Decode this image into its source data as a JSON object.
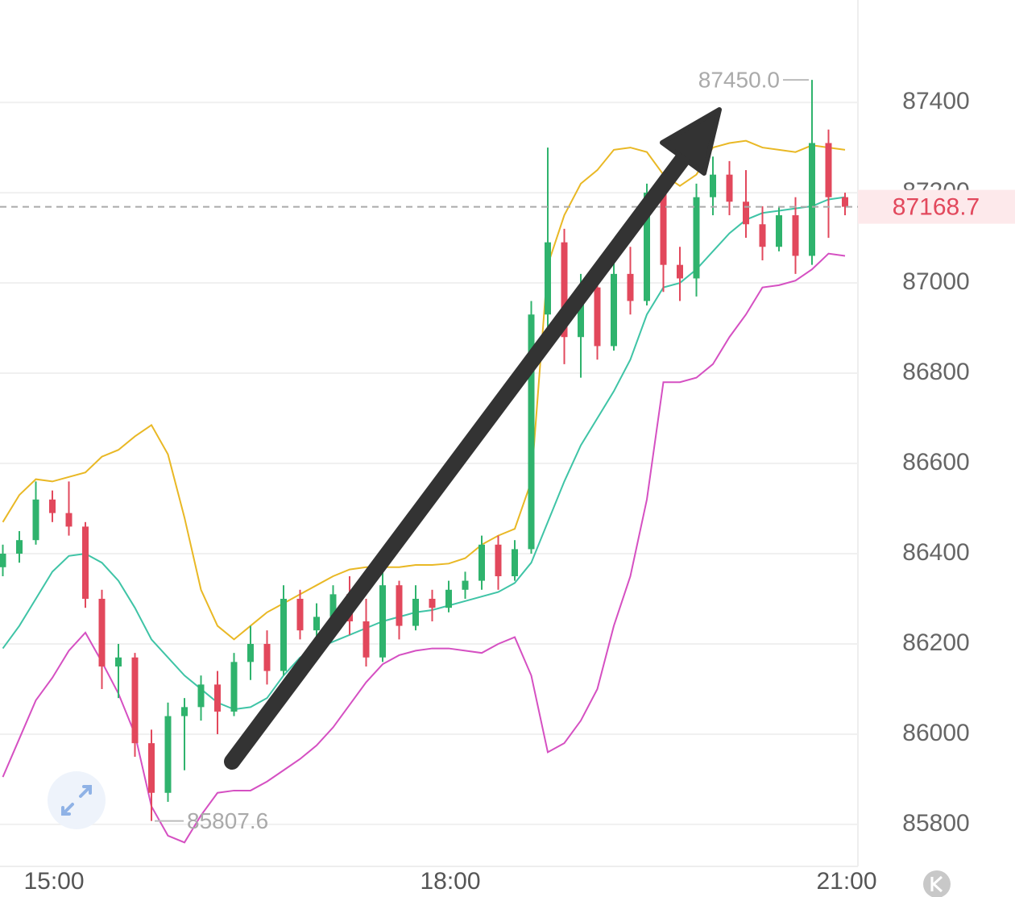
{
  "chart_data": {
    "type": "candlestick",
    "categories": [
      null,
      null,
      null,
      "15:00",
      null,
      null,
      null,
      null,
      null,
      null,
      null,
      null,
      null,
      null,
      null,
      null,
      null,
      null,
      null,
      null,
      null,
      null,
      null,
      null,
      null,
      null,
      null,
      "18:00",
      null,
      null,
      null,
      null,
      null,
      null,
      null,
      null,
      null,
      null,
      null,
      null,
      null,
      null,
      null,
      null,
      null,
      null,
      null,
      null,
      null,
      null,
      null,
      "21:00"
    ],
    "ohlc": [
      [
        86370,
        86420,
        86350,
        86400
      ],
      [
        86400,
        86450,
        86380,
        86430
      ],
      [
        86430,
        86560,
        86420,
        86520
      ],
      [
        86520,
        86540,
        86470,
        86490
      ],
      [
        86490,
        86560,
        86440,
        86460
      ],
      [
        86460,
        86470,
        86280,
        86300
      ],
      [
        86300,
        86320,
        86100,
        86150
      ],
      [
        86150,
        86200,
        86080,
        86170
      ],
      [
        86170,
        86180,
        85950,
        85980
      ],
      [
        85980,
        86010,
        85807.6,
        85870
      ],
      [
        85870,
        86070,
        85850,
        86040
      ],
      [
        86040,
        86080,
        85920,
        86060
      ],
      [
        86060,
        86130,
        86030,
        86110
      ],
      [
        86110,
        86140,
        86000,
        86050
      ],
      [
        86050,
        86180,
        86040,
        86160
      ],
      [
        86160,
        86240,
        86120,
        86200
      ],
      [
        86200,
        86230,
        86110,
        86140
      ],
      [
        86140,
        86330,
        86130,
        86300
      ],
      [
        86300,
        86320,
        86210,
        86230
      ],
      [
        86230,
        86290,
        86200,
        86260
      ],
      [
        86260,
        86330,
        86240,
        86310
      ],
      [
        86310,
        86350,
        86220,
        86250
      ],
      [
        86250,
        86300,
        86150,
        86170
      ],
      [
        86170,
        86360,
        86160,
        86330
      ],
      [
        86330,
        86340,
        86210,
        86240
      ],
      [
        86240,
        86330,
        86230,
        86300
      ],
      [
        86300,
        86320,
        86250,
        86280
      ],
      [
        86280,
        86340,
        86270,
        86320
      ],
      [
        86320,
        86360,
        86300,
        86340
      ],
      [
        86340,
        86440,
        86320,
        86420
      ],
      [
        86420,
        86440,
        86320,
        86350
      ],
      [
        86350,
        86430,
        86340,
        86410
      ],
      [
        86410,
        86960,
        86400,
        86930
      ],
      [
        86930,
        87300,
        86880,
        87090
      ],
      [
        87090,
        87120,
        86820,
        86880
      ],
      [
        86880,
        87020,
        86790,
        86990
      ],
      [
        86990,
        87000,
        86830,
        86860
      ],
      [
        86860,
        87050,
        86850,
        87020
      ],
      [
        87020,
        87080,
        86930,
        86960
      ],
      [
        86960,
        87220,
        86950,
        87200
      ],
      [
        87200,
        87210,
        86980,
        87040
      ],
      [
        87040,
        87080,
        86960,
        87010
      ],
      [
        87010,
        87220,
        86970,
        87190
      ],
      [
        87190,
        87280,
        87150,
        87240
      ],
      [
        87240,
        87270,
        87150,
        87180
      ],
      [
        87180,
        87250,
        87100,
        87130
      ],
      [
        87130,
        87170,
        87050,
        87080
      ],
      [
        87080,
        87170,
        87070,
        87150
      ],
      [
        87150,
        87190,
        87020,
        87060
      ],
      [
        87060,
        87450,
        87040,
        87310
      ],
      [
        87310,
        87340,
        87100,
        87190
      ],
      [
        87190,
        87200,
        87150,
        87168.7
      ]
    ],
    "up_color": "#2fb36d",
    "down_color": "#e2485c",
    "bands": [
      {
        "color": "#e9b825",
        "values": [
          86470,
          86530,
          86565,
          86560,
          86570,
          86580,
          86615,
          86630,
          86660,
          86685,
          86620,
          86480,
          86320,
          86240,
          86210,
          86240,
          86270,
          86290,
          86310,
          86330,
          86350,
          86365,
          86370,
          86370,
          86370,
          86375,
          86375,
          86378,
          86390,
          86420,
          86440,
          86455,
          86560,
          87040,
          87150,
          87220,
          87250,
          87295,
          87300,
          87290,
          87240,
          87215,
          87240,
          87300,
          87310,
          87315,
          87300,
          87295,
          87290,
          87305,
          87300,
          87295
        ]
      },
      {
        "color": "#3fc4a6",
        "values": [
          86190,
          86240,
          86300,
          86360,
          86395,
          86400,
          86380,
          86340,
          86280,
          86210,
          86170,
          86130,
          86100,
          86070,
          86055,
          86060,
          86080,
          86130,
          86170,
          86190,
          86205,
          86220,
          86235,
          86250,
          86260,
          86270,
          86275,
          86285,
          86295,
          86305,
          86315,
          86335,
          86380,
          86470,
          86560,
          86640,
          86700,
          86760,
          86830,
          86930,
          86990,
          87000,
          87030,
          87070,
          87110,
          87140,
          87155,
          87160,
          87165,
          87170,
          87185,
          87190
        ]
      },
      {
        "color": "#d550c2",
        "values": [
          85905,
          85990,
          86075,
          86125,
          86185,
          86225,
          86160,
          86090,
          86000,
          85840,
          85775,
          85760,
          85820,
          85870,
          85875,
          85875,
          85895,
          85920,
          85945,
          85975,
          86015,
          86065,
          86115,
          86155,
          86175,
          86185,
          86190,
          86190,
          86185,
          86180,
          86200,
          86215,
          86130,
          85960,
          85980,
          86030,
          86100,
          86240,
          86350,
          86520,
          86780,
          86780,
          86790,
          86820,
          86880,
          86930,
          86990,
          86995,
          87005,
          87030,
          87065,
          87060
        ]
      }
    ],
    "high_label": "87450.0",
    "low_label": "85807.6",
    "last_label": "87168.7",
    "ylim": [
      85707,
      87627
    ],
    "yticks": [
      85800,
      86000,
      86200,
      86400,
      86600,
      86800,
      87000,
      87200,
      87400
    ],
    "grid": true
  }
}
